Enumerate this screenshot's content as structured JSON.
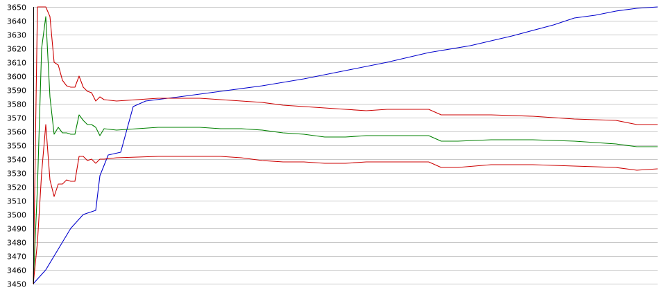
{
  "chart_data": {
    "type": "line",
    "title": "",
    "xlabel": "",
    "ylabel": "",
    "ylim": [
      3450,
      3650
    ],
    "yticks": [
      3450,
      3460,
      3470,
      3480,
      3490,
      3500,
      3510,
      3520,
      3530,
      3540,
      3550,
      3560,
      3570,
      3580,
      3590,
      3600,
      3610,
      3620,
      3630,
      3640,
      3650
    ],
    "xlim": [
      0,
      150
    ],
    "grid": true,
    "legend": "none",
    "series": [
      {
        "color": "#0000cc",
        "points": [
          [
            0,
            3450
          ],
          [
            3,
            3460
          ],
          [
            6,
            3475
          ],
          [
            9,
            3490
          ],
          [
            12,
            3500
          ],
          [
            15,
            3503
          ],
          [
            16,
            3528
          ],
          [
            18,
            3543
          ],
          [
            21,
            3545
          ],
          [
            24,
            3578
          ],
          [
            27,
            3582
          ],
          [
            35,
            3585
          ],
          [
            45,
            3589
          ],
          [
            55,
            3593
          ],
          [
            65,
            3598
          ],
          [
            75,
            3604
          ],
          [
            85,
            3610
          ],
          [
            95,
            3617
          ],
          [
            105,
            3622
          ],
          [
            115,
            3629
          ],
          [
            125,
            3637
          ],
          [
            130,
            3642
          ],
          [
            135,
            3644
          ],
          [
            140,
            3647
          ],
          [
            145,
            3649
          ],
          [
            150,
            3650
          ]
        ]
      },
      {
        "color": "#cc0000",
        "points": [
          [
            0,
            3450
          ],
          [
            1,
            3650
          ],
          [
            3,
            3650
          ],
          [
            4,
            3643
          ],
          [
            5,
            3610
          ],
          [
            6,
            3608
          ],
          [
            7,
            3597
          ],
          [
            8,
            3593
          ],
          [
            9,
            3592
          ],
          [
            10,
            3592
          ],
          [
            11,
            3600
          ],
          [
            12,
            3592
          ],
          [
            13,
            3589
          ],
          [
            14,
            3588
          ],
          [
            15,
            3582
          ],
          [
            16,
            3585
          ],
          [
            17,
            3583
          ],
          [
            20,
            3582
          ],
          [
            30,
            3584
          ],
          [
            40,
            3584
          ],
          [
            45,
            3583
          ],
          [
            50,
            3582
          ],
          [
            55,
            3581
          ],
          [
            60,
            3579
          ],
          [
            65,
            3578
          ],
          [
            70,
            3577
          ],
          [
            75,
            3576
          ],
          [
            80,
            3575
          ],
          [
            85,
            3576
          ],
          [
            90,
            3576
          ],
          [
            95,
            3576
          ],
          [
            98,
            3572
          ],
          [
            102,
            3572
          ],
          [
            110,
            3572
          ],
          [
            120,
            3571
          ],
          [
            130,
            3569
          ],
          [
            140,
            3568
          ],
          [
            145,
            3565
          ],
          [
            150,
            3565
          ]
        ]
      },
      {
        "color": "#008000",
        "points": [
          [
            0,
            3450
          ],
          [
            1,
            3520
          ],
          [
            2,
            3620
          ],
          [
            3,
            3643
          ],
          [
            4,
            3585
          ],
          [
            5,
            3558
          ],
          [
            6,
            3563
          ],
          [
            7,
            3559
          ],
          [
            8,
            3559
          ],
          [
            9,
            3558
          ],
          [
            10,
            3558
          ],
          [
            11,
            3572
          ],
          [
            12,
            3568
          ],
          [
            13,
            3565
          ],
          [
            14,
            3565
          ],
          [
            15,
            3563
          ],
          [
            16,
            3557
          ],
          [
            17,
            3562
          ],
          [
            20,
            3561
          ],
          [
            30,
            3563
          ],
          [
            40,
            3563
          ],
          [
            45,
            3562
          ],
          [
            50,
            3562
          ],
          [
            55,
            3561
          ],
          [
            60,
            3559
          ],
          [
            65,
            3558
          ],
          [
            70,
            3556
          ],
          [
            75,
            3556
          ],
          [
            80,
            3557
          ],
          [
            85,
            3557
          ],
          [
            90,
            3557
          ],
          [
            95,
            3557
          ],
          [
            98,
            3553
          ],
          [
            102,
            3553
          ],
          [
            110,
            3554
          ],
          [
            120,
            3554
          ],
          [
            130,
            3553
          ],
          [
            140,
            3551
          ],
          [
            145,
            3549
          ],
          [
            150,
            3549
          ]
        ]
      },
      {
        "color": "#cc0000",
        "points": [
          [
            0,
            3450
          ],
          [
            1,
            3480
          ],
          [
            2,
            3530
          ],
          [
            3,
            3565
          ],
          [
            4,
            3525
          ],
          [
            5,
            3513
          ],
          [
            6,
            3522
          ],
          [
            7,
            3522
          ],
          [
            8,
            3525
          ],
          [
            9,
            3524
          ],
          [
            10,
            3524
          ],
          [
            11,
            3542
          ],
          [
            12,
            3542
          ],
          [
            13,
            3539
          ],
          [
            14,
            3540
          ],
          [
            15,
            3537
          ],
          [
            16,
            3540
          ],
          [
            17,
            3540
          ],
          [
            20,
            3541
          ],
          [
            30,
            3542
          ],
          [
            40,
            3542
          ],
          [
            45,
            3542
          ],
          [
            50,
            3541
          ],
          [
            55,
            3539
          ],
          [
            60,
            3538
          ],
          [
            65,
            3538
          ],
          [
            70,
            3537
          ],
          [
            75,
            3537
          ],
          [
            80,
            3538
          ],
          [
            85,
            3538
          ],
          [
            90,
            3538
          ],
          [
            95,
            3538
          ],
          [
            98,
            3534
          ],
          [
            102,
            3534
          ],
          [
            110,
            3536
          ],
          [
            120,
            3536
          ],
          [
            130,
            3535
          ],
          [
            140,
            3534
          ],
          [
            145,
            3532
          ],
          [
            150,
            3533
          ]
        ]
      }
    ]
  }
}
